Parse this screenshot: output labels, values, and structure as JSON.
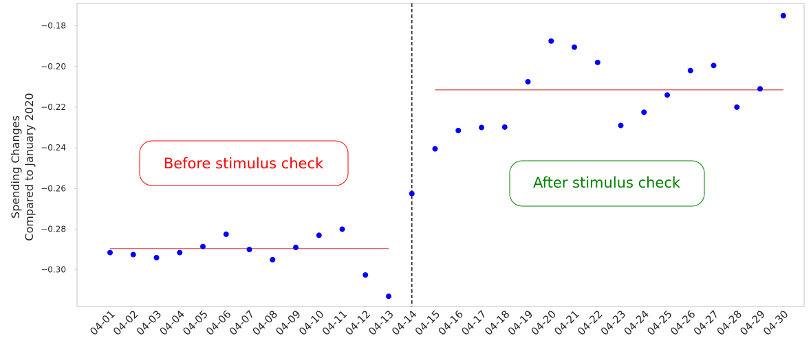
{
  "chart_data": {
    "type": "scatter",
    "title": "",
    "xlabel": "",
    "ylabel_lines": [
      "Spending Changes",
      "Compared to January 2020"
    ],
    "categories": [
      "04-01",
      "04-02",
      "04-03",
      "04-04",
      "04-05",
      "04-06",
      "04-07",
      "04-08",
      "04-09",
      "04-10",
      "04-11",
      "04-12",
      "04-13",
      "04-14",
      "04-15",
      "04-16",
      "04-17",
      "04-18",
      "04-19",
      "04-20",
      "04-21",
      "04-22",
      "04-23",
      "04-24",
      "04-25",
      "04-26",
      "04-27",
      "04-28",
      "04-29",
      "04-30"
    ],
    "values": [
      -0.2915,
      -0.2925,
      -0.294,
      -0.2915,
      -0.2885,
      -0.2825,
      -0.29,
      -0.295,
      -0.289,
      -0.283,
      -0.28,
      -0.3025,
      -0.313,
      -0.2625,
      -0.2405,
      -0.2315,
      -0.23,
      -0.2298,
      -0.2075,
      -0.1875,
      -0.1905,
      -0.198,
      -0.229,
      -0.2225,
      -0.214,
      -0.202,
      -0.1995,
      -0.22,
      -0.211,
      -0.175
    ],
    "ylim": [
      -0.318,
      -0.169
    ],
    "yticks": [
      -0.18,
      -0.2,
      -0.22,
      -0.24,
      -0.26,
      -0.28,
      -0.3
    ],
    "ytick_labels": [
      "−0.18",
      "−0.20",
      "−0.22",
      "−0.24",
      "−0.26",
      "−0.28",
      "−0.30"
    ],
    "grid": false,
    "point_color": "#0000ff",
    "mean_lines": [
      {
        "from": "04-01",
        "to": "04-13",
        "value": -0.2895,
        "color": "#e06666"
      },
      {
        "from": "04-15",
        "to": "04-30",
        "value": -0.2115,
        "color": "#e06666"
      }
    ],
    "divider": {
      "at": "04-14",
      "style": "dashed",
      "color": "#222222"
    },
    "annotations": [
      {
        "text": "Before stimulus check",
        "color": "#ff0000",
        "region": "before"
      },
      {
        "text": "After stimulus check",
        "color": "#008000",
        "region": "after"
      }
    ]
  }
}
